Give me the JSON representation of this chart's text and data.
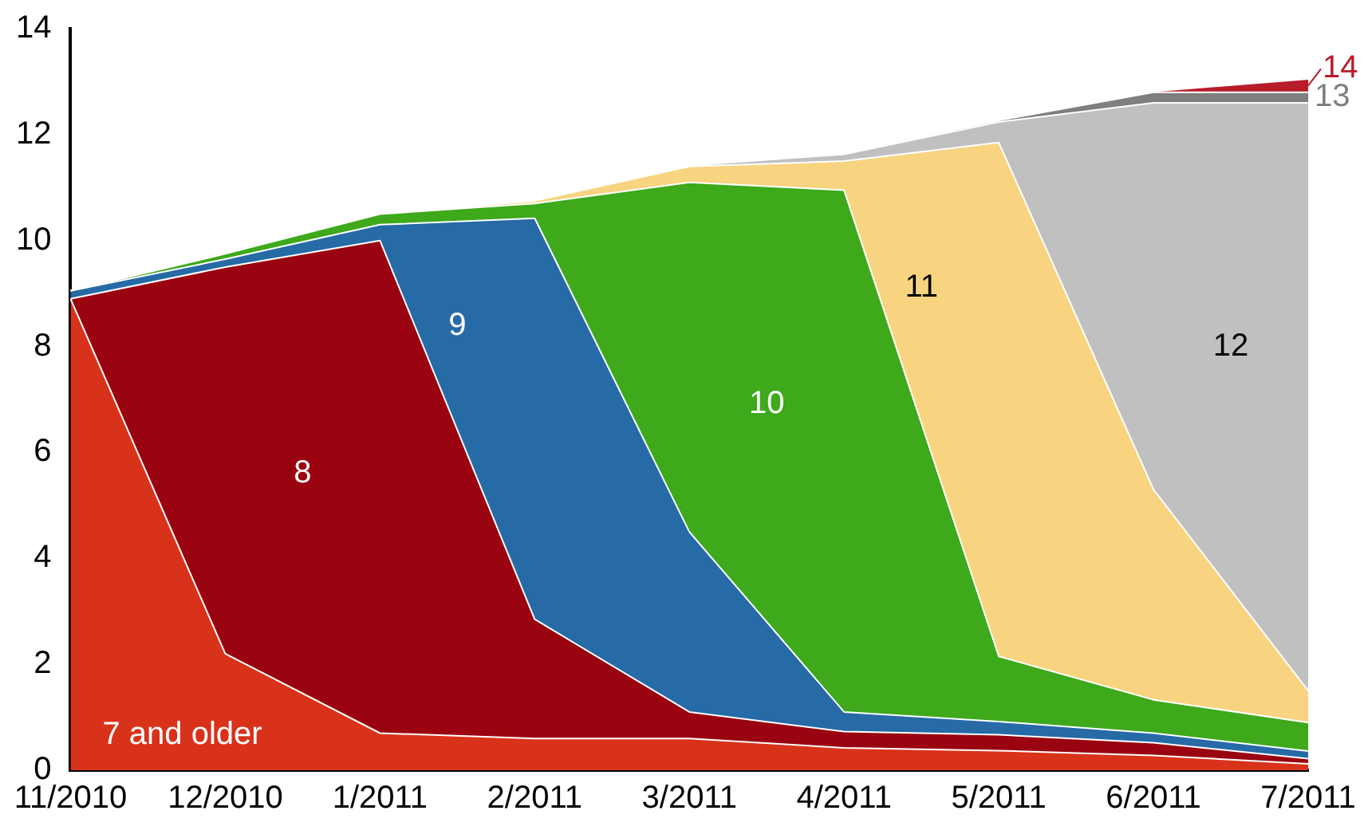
{
  "chart_data": {
    "type": "area",
    "stacked": true,
    "legend": false,
    "grid": false,
    "categories": [
      "11/2010",
      "12/2010",
      "1/2011",
      "2/2011",
      "3/2011",
      "4/2011",
      "5/2011",
      "6/2011",
      "7/2011"
    ],
    "ylim": [
      0,
      14
    ],
    "yticks": [
      0,
      2,
      4,
      6,
      8,
      10,
      12,
      14
    ],
    "series": [
      {
        "name": "7 and older",
        "color": "#d9321a",
        "values": [
          8.9,
          2.2,
          0.7,
          0.6,
          0.6,
          0.42,
          0.37,
          0.28,
          0.12
        ]
      },
      {
        "name": "8",
        "color": "#9a0410",
        "values": [
          0,
          7.3,
          9.3,
          2.25,
          0.5,
          0.31,
          0.3,
          0.24,
          0.1
        ]
      },
      {
        "name": "9",
        "color": "#266aa6",
        "values": [
          0.15,
          0.15,
          0.3,
          7.57,
          3.4,
          0.37,
          0.25,
          0.18,
          0.14
        ]
      },
      {
        "name": "10",
        "color": "#3da91b",
        "values": [
          0,
          0.1,
          0.2,
          0.28,
          6.6,
          9.85,
          1.23,
          0.63,
          0.54
        ]
      },
      {
        "name": "11",
        "color": "#f8d480",
        "values": [
          0,
          0,
          0,
          0.05,
          0.3,
          0.55,
          9.7,
          3.97,
          0.6
        ]
      },
      {
        "name": "12",
        "color": "#c0c0c0",
        "values": [
          0,
          0,
          0,
          0,
          0.02,
          0.13,
          0.39,
          7.3,
          11.1
        ]
      },
      {
        "name": "13",
        "color": "#7f7f7f",
        "values": [
          0,
          0,
          0,
          0,
          0,
          0.02,
          0.03,
          0.2,
          0.2
        ]
      },
      {
        "name": "14",
        "color": "#b71c2a",
        "values": [
          0,
          0,
          0,
          0,
          0,
          0,
          0,
          0.02,
          0.25
        ]
      }
    ]
  }
}
